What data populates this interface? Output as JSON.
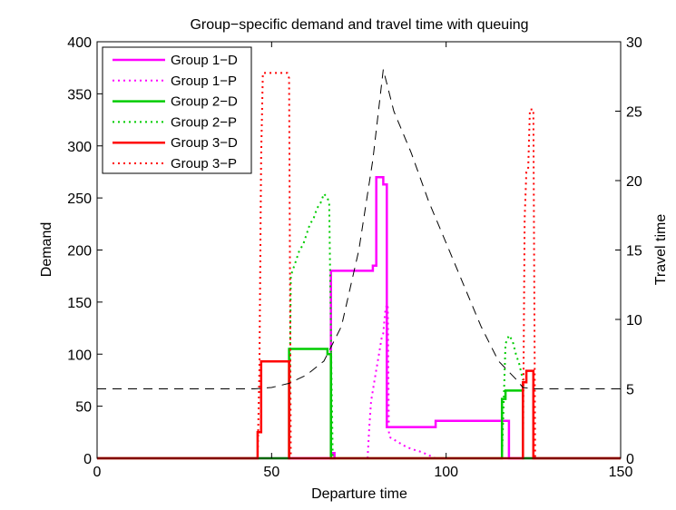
{
  "chart_data": {
    "type": "line",
    "title": "Group−specific demand and travel time with queuing",
    "xlabel": "Departure time",
    "ylabel": "Demand",
    "y2label": "Travel time",
    "xlim": [
      0,
      150
    ],
    "ylim": [
      0,
      400
    ],
    "y2lim": [
      0,
      30
    ],
    "xticks": [
      0,
      50,
      100,
      150
    ],
    "yticks": [
      0,
      50,
      100,
      150,
      200,
      250,
      300,
      350,
      400
    ],
    "y2ticks": [
      0,
      5,
      10,
      15,
      20,
      25,
      30
    ],
    "grid": false,
    "legend_position": "top-left",
    "series": [
      {
        "name": "Group 1−D",
        "color": "#ff00ff",
        "style": "solid",
        "axis": "left",
        "x": [
          0,
          67,
          67,
          68,
          68,
          67,
          67,
          79,
          79,
          80,
          80,
          82,
          82,
          83,
          83,
          97,
          97,
          118,
          118,
          150
        ],
        "y": [
          0,
          0,
          5,
          5,
          0,
          0,
          180,
          180,
          185,
          185,
          270,
          270,
          263,
          263,
          30,
          30,
          36,
          36,
          0,
          0
        ]
      },
      {
        "name": "Group 1−P",
        "color": "#ff00ff",
        "style": "dotted",
        "axis": "left",
        "x": [
          77.5,
          78,
          78.5,
          79,
          79.5,
          80,
          80.5,
          81,
          81.5,
          82,
          82.5,
          83,
          83.3,
          83.6,
          84,
          86,
          88,
          90,
          93,
          95,
          97
        ],
        "y": [
          0,
          30,
          55,
          65,
          75,
          85,
          95,
          105,
          115,
          120,
          140,
          148,
          145,
          25,
          20,
          16,
          12,
          9,
          6,
          3,
          0
        ]
      },
      {
        "name": "Group 2−D",
        "color": "#00cc00",
        "style": "solid",
        "axis": "left",
        "x": [
          0,
          55,
          55,
          66,
          66,
          67,
          67,
          116,
          116,
          117,
          117,
          122,
          122,
          150
        ],
        "y": [
          0,
          0,
          105,
          105,
          100,
          100,
          0,
          0,
          57,
          57,
          65,
          65,
          0,
          0
        ]
      },
      {
        "name": "Group 2−P",
        "color": "#00cc00",
        "style": "dotted",
        "axis": "left",
        "x": [
          55,
          55.5,
          56,
          57,
          58,
          59,
          60,
          61,
          62,
          63,
          64,
          65,
          66,
          66.5,
          67,
          67.5,
          116,
          117,
          118,
          119,
          120,
          121,
          122
        ],
        "y": [
          0,
          175,
          180,
          190,
          200,
          205,
          215,
          225,
          230,
          240,
          245,
          254,
          250,
          245,
          120,
          0,
          0,
          110,
          118,
          113,
          100,
          90,
          75
        ]
      },
      {
        "name": "Group 3−D",
        "color": "#ff0000",
        "style": "solid",
        "axis": "left",
        "x": [
          0,
          46,
          46,
          47,
          47,
          55,
          55,
          122,
          122,
          123,
          123,
          125,
          125,
          150
        ],
        "y": [
          0,
          0,
          25,
          25,
          93,
          93,
          0,
          0,
          73,
          73,
          84,
          84,
          0,
          0
        ]
      },
      {
        "name": "Group 3−P",
        "color": "#ff0000",
        "style": "dotted",
        "axis": "left",
        "x": [
          46,
          46.5,
          47,
          47.5,
          54.5,
          55,
          55.5,
          122,
          122.5,
          123,
          123.5,
          124,
          124.5,
          125,
          125.5
        ],
        "y": [
          0,
          85,
          290,
          370,
          370,
          365,
          0,
          0,
          230,
          275,
          278,
          335,
          335,
          335,
          0
        ]
      },
      {
        "name": "",
        "color": "#000000",
        "style": "dashed",
        "axis": "right",
        "x": [
          0,
          45,
          50,
          55,
          60,
          65,
          70,
          75,
          79,
          82,
          85,
          90,
          95,
          100,
          105,
          110,
          115,
          120,
          122,
          125,
          150
        ],
        "y": [
          5,
          5,
          5.1,
          5.4,
          6,
          7,
          9.5,
          15,
          21.5,
          28,
          25,
          22,
          18.5,
          15.5,
          12.5,
          9.5,
          7,
          5.7,
          5.1,
          5,
          5
        ]
      }
    ]
  }
}
